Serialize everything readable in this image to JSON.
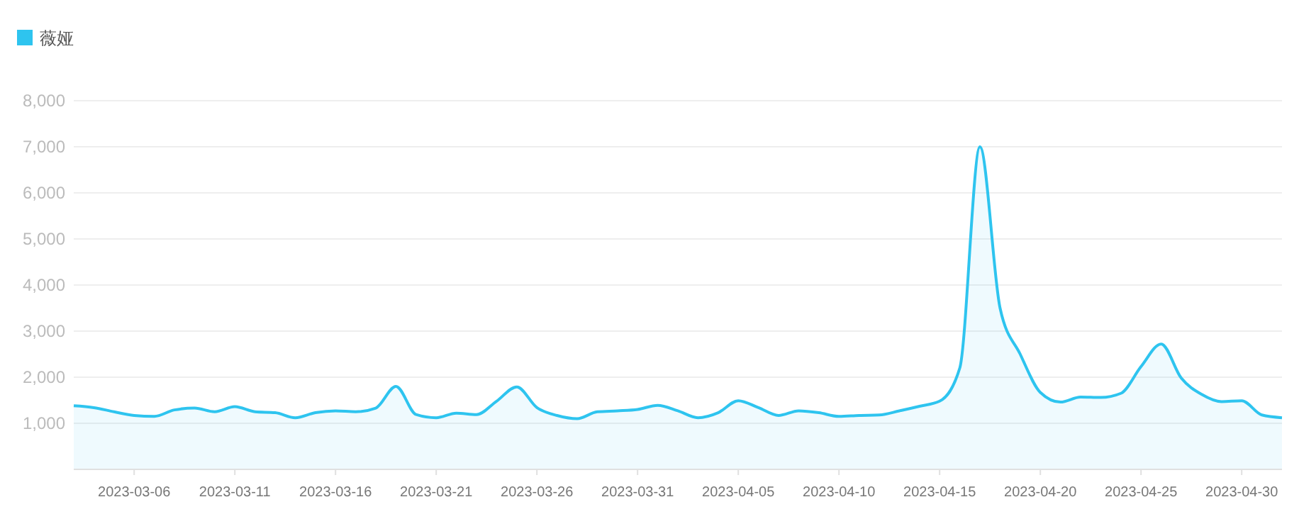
{
  "chart_data": {
    "type": "area",
    "legend": "top left",
    "grid": "y",
    "marker": "none",
    "line_style": "solid",
    "x": [
      "2023-03-03",
      "2023-03-04",
      "2023-03-05",
      "2023-03-06",
      "2023-03-07",
      "2023-03-08",
      "2023-03-09",
      "2023-03-10",
      "2023-03-11",
      "2023-03-12",
      "2023-03-13",
      "2023-03-14",
      "2023-03-15",
      "2023-03-16",
      "2023-03-17",
      "2023-03-18",
      "2023-03-19",
      "2023-03-20",
      "2023-03-21",
      "2023-03-22",
      "2023-03-23",
      "2023-03-24",
      "2023-03-25",
      "2023-03-26",
      "2023-03-27",
      "2023-03-28",
      "2023-03-29",
      "2023-03-30",
      "2023-03-31",
      "2023-04-01",
      "2023-04-02",
      "2023-04-03",
      "2023-04-04",
      "2023-04-05",
      "2023-04-06",
      "2023-04-07",
      "2023-04-08",
      "2023-04-09",
      "2023-04-10",
      "2023-04-11",
      "2023-04-12",
      "2023-04-13",
      "2023-04-14",
      "2023-04-15",
      "2023-04-16",
      "2023-04-17",
      "2023-04-18",
      "2023-04-19",
      "2023-04-20",
      "2023-04-21",
      "2023-04-22",
      "2023-04-23",
      "2023-04-24",
      "2023-04-25",
      "2023-04-26",
      "2023-04-27",
      "2023-04-28",
      "2023-04-29",
      "2023-04-30",
      "2023-05-01",
      "2023-05-02"
    ],
    "series": [
      {
        "name": "薇娅",
        "color": "#2ec4ef",
        "values": [
          1380,
          1340,
          1250,
          1170,
          1150,
          1290,
          1330,
          1250,
          1360,
          1250,
          1230,
          1120,
          1230,
          1270,
          1250,
          1330,
          1800,
          1190,
          1120,
          1220,
          1190,
          1480,
          1790,
          1340,
          1170,
          1100,
          1250,
          1270,
          1300,
          1390,
          1270,
          1120,
          1230,
          1490,
          1340,
          1170,
          1270,
          1230,
          1150,
          1170,
          1180,
          1270,
          1370,
          1480,
          2200,
          7000,
          3500,
          2500,
          1670,
          1460,
          1570,
          1560,
          1650,
          2230,
          2720,
          1980,
          1630,
          1470,
          1490,
          1180,
          1120
        ]
      }
    ],
    "xlim": [
      "2023-03-03",
      "2023-05-02"
    ],
    "xticks": [
      "2023-03-06",
      "2023-03-11",
      "2023-03-16",
      "2023-03-21",
      "2023-03-26",
      "2023-03-31",
      "2023-04-05",
      "2023-04-10",
      "2023-04-15",
      "2023-04-20",
      "2023-04-25",
      "2023-04-30"
    ],
    "ylim": [
      0,
      8000
    ],
    "yticks": [
      {
        "value": 1000,
        "label": "1,000"
      },
      {
        "value": 2000,
        "label": "2,000"
      },
      {
        "value": 3000,
        "label": "3,000"
      },
      {
        "value": 4000,
        "label": "4,000"
      },
      {
        "value": 5000,
        "label": "5,000"
      },
      {
        "value": 6000,
        "label": "6,000"
      },
      {
        "value": 7000,
        "label": "7,000"
      },
      {
        "value": 8000,
        "label": "8,000"
      }
    ]
  }
}
